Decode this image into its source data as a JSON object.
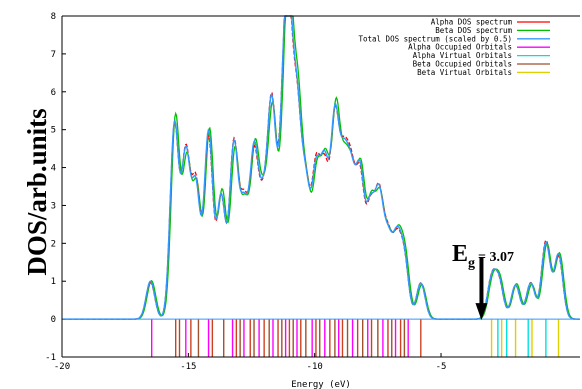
{
  "chart_data": {
    "type": "line",
    "xlabel": "Energy (eV)",
    "ylabel": "DOS/arb.units",
    "xlim": [
      -20,
      0.5
    ],
    "ylim": [
      -1,
      8
    ],
    "x_ticks": [
      "-20",
      "-15",
      "-10",
      "-5"
    ],
    "x_tick_values": [
      -20,
      -15,
      -10,
      -5
    ],
    "y_ticks": [
      "-1",
      "0",
      "1",
      "2",
      "3",
      "4",
      "5",
      "6",
      "7",
      "8"
    ],
    "y_tick_values": [
      -1,
      0,
      1,
      2,
      3,
      4,
      5,
      6,
      7,
      8
    ],
    "legend_position": "top-right",
    "legend": [
      {
        "name": "Alpha DOS spectrum",
        "color": "#ff0000"
      },
      {
        "name": "Beta DOS spectrum",
        "color": "#00c000"
      },
      {
        "name": "Total DOS spectrum (scaled by 0.5)",
        "color": "#3399ff"
      },
      {
        "name": "Alpha Occupied Orbitals",
        "color": "#ff00ff"
      },
      {
        "name": "Alpha Virtual Orbitals",
        "color": "#00e0e0"
      },
      {
        "name": "Beta Occupied Orbitals",
        "color": "#a0522d"
      },
      {
        "name": "Beta Virtual Orbitals",
        "color": "#e0d000"
      }
    ],
    "annotation": {
      "label": "E",
      "subscript": "g",
      "value": "= 3.07",
      "arrow_x": -3.4
    },
    "total_dos_peaks": [
      {
        "e": -16.5,
        "h": 1.0
      },
      {
        "e": -15.55,
        "h": 5.1
      },
      {
        "e": -15.1,
        "h": 4.2
      },
      {
        "e": -14.7,
        "h": 3.4
      },
      {
        "e": -14.2,
        "h": 4.9
      },
      {
        "e": -13.7,
        "h": 3.2
      },
      {
        "e": -13.2,
        "h": 4.5
      },
      {
        "e": -12.8,
        "h": 2.8
      },
      {
        "e": -12.4,
        "h": 4.2
      },
      {
        "e": -12.05,
        "h": 2.6
      },
      {
        "e": -11.7,
        "h": 5.4
      },
      {
        "e": -11.3,
        "h": 3.3
      },
      {
        "e": -11.05,
        "h": 7.6
      },
      {
        "e": -10.7,
        "h": 5.1
      },
      {
        "e": -10.35,
        "h": 3.2
      },
      {
        "e": -9.95,
        "h": 3.6
      },
      {
        "e": -9.6,
        "h": 3.7
      },
      {
        "e": -9.2,
        "h": 5.0
      },
      {
        "e": -8.85,
        "h": 3.5
      },
      {
        "e": -8.55,
        "h": 3.2
      },
      {
        "e": -8.2,
        "h": 3.6
      },
      {
        "e": -7.8,
        "h": 2.7
      },
      {
        "e": -7.45,
        "h": 3.0
      },
      {
        "e": -7.1,
        "h": 1.9
      },
      {
        "e": -6.75,
        "h": 1.9
      },
      {
        "e": -6.45,
        "h": 1.5
      },
      {
        "e": -5.8,
        "h": 0.95
      },
      {
        "e": -3.0,
        "h": 1.0
      },
      {
        "e": -2.7,
        "h": 0.95
      },
      {
        "e": -2.05,
        "h": 0.9
      },
      {
        "e": -1.45,
        "h": 0.95
      },
      {
        "e": -0.85,
        "h": 2.0
      },
      {
        "e": -0.35,
        "h": 1.7
      }
    ],
    "occupied_orbitals": [
      -16.45,
      -15.5,
      -15.35,
      -15.1,
      -14.9,
      -14.6,
      -14.2,
      -14.05,
      -13.6,
      -13.25,
      -13.1,
      -12.95,
      -12.8,
      -12.55,
      -12.4,
      -12.2,
      -12.0,
      -11.8,
      -11.65,
      -11.45,
      -11.3,
      -11.15,
      -11.0,
      -10.85,
      -10.7,
      -10.55,
      -10.35,
      -10.1,
      -9.95,
      -9.8,
      -9.6,
      -9.4,
      -9.2,
      -9.05,
      -8.9,
      -8.7,
      -8.5,
      -8.3,
      -8.1,
      -7.9,
      -7.75,
      -7.5,
      -7.3,
      -7.1,
      -6.95,
      -6.8,
      -6.6,
      -6.45,
      -6.3,
      -5.8
    ],
    "virtual_orbitals": [
      -3.0,
      -2.75,
      -2.6,
      -2.4,
      -2.05,
      -1.55,
      -1.4,
      -0.85,
      -0.35
    ]
  }
}
